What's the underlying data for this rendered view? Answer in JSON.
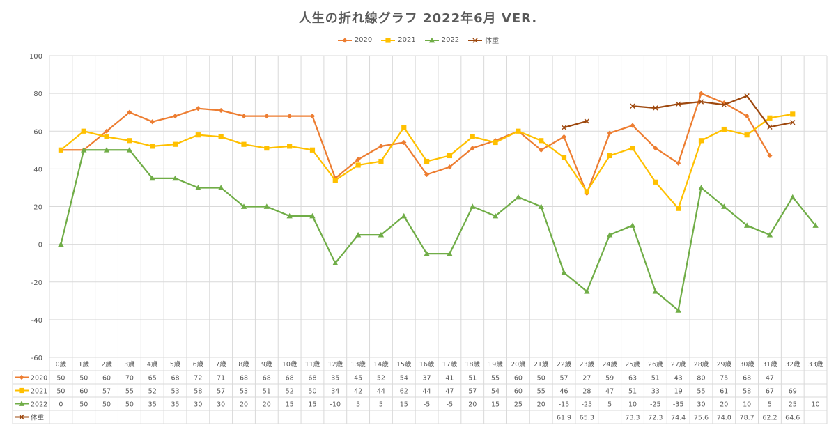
{
  "chart_data": {
    "type": "line",
    "title": "人生の折れ線グラフ 2022年6月 VER.",
    "xlabel": "",
    "ylabel": "",
    "ylim": [
      -60,
      100
    ],
    "yticks": [
      "100",
      "80",
      "60",
      "40",
      "20",
      "0",
      "-20",
      "-40",
      "-60"
    ],
    "grid": true,
    "legend_position": "top",
    "categories": [
      "0歳",
      "1歳",
      "2歳",
      "3歳",
      "4歳",
      "5歳",
      "6歳",
      "7歳",
      "8歳",
      "9歳",
      "10歳",
      "11歳",
      "12歳",
      "13歳",
      "14歳",
      "15歳",
      "16歳",
      "17歳",
      "18歳",
      "19歳",
      "20歳",
      "21歳",
      "22歳",
      "23歳",
      "24歳",
      "25歳",
      "26歳",
      "27歳",
      "28歳",
      "29歳",
      "30歳",
      "31歳",
      "32歳",
      "33歳"
    ],
    "series": [
      {
        "name": "2020",
        "color": "#ED7D31",
        "marker": "diamond",
        "values": [
          50,
          50,
          60,
          70,
          65,
          68,
          72,
          71,
          68,
          68,
          68,
          68,
          35,
          45,
          52,
          54,
          37,
          41,
          51,
          55,
          60,
          50,
          57,
          27,
          59,
          63,
          51,
          43,
          80,
          75,
          68,
          47,
          null,
          null
        ]
      },
      {
        "name": "2021",
        "color": "#FFC000",
        "marker": "square",
        "values": [
          50,
          60,
          57,
          55,
          52,
          53,
          58,
          57,
          53,
          51,
          52,
          50,
          34,
          42,
          44,
          62,
          44,
          47,
          57,
          54,
          60,
          55,
          46,
          28,
          47,
          51,
          33,
          19,
          55,
          61,
          58,
          67,
          69,
          null
        ]
      },
      {
        "name": "2022",
        "color": "#70AD47",
        "marker": "triangle",
        "values": [
          0,
          50,
          50,
          50,
          35,
          35,
          30,
          30,
          20,
          20,
          15,
          15,
          -10,
          5,
          5,
          15,
          -5,
          -5,
          20,
          15,
          25,
          20,
          -15,
          -25,
          5,
          10,
          -25,
          -35,
          30,
          20,
          10,
          5,
          25,
          10
        ]
      },
      {
        "name": "体重",
        "color": "#9E480E",
        "marker": "x",
        "values": [
          null,
          null,
          null,
          null,
          null,
          null,
          null,
          null,
          null,
          null,
          null,
          null,
          null,
          null,
          null,
          null,
          null,
          null,
          null,
          null,
          null,
          null,
          61.9,
          65.3,
          null,
          73.3,
          72.3,
          74.4,
          75.6,
          74.0,
          78.7,
          62.2,
          64.6,
          null
        ],
        "table_labels": [
          "",
          "",
          "",
          "",
          "",
          "",
          "",
          "",
          "",
          "",
          "",
          "",
          "",
          "",
          "",
          "",
          "",
          "",
          "",
          "",
          "",
          "",
          "61.9",
          "65.3",
          "",
          "73.3",
          "72.3",
          "74.4",
          "75.6",
          "74.0",
          "78.7",
          "62.2",
          "64.6",
          ""
        ]
      }
    ]
  }
}
